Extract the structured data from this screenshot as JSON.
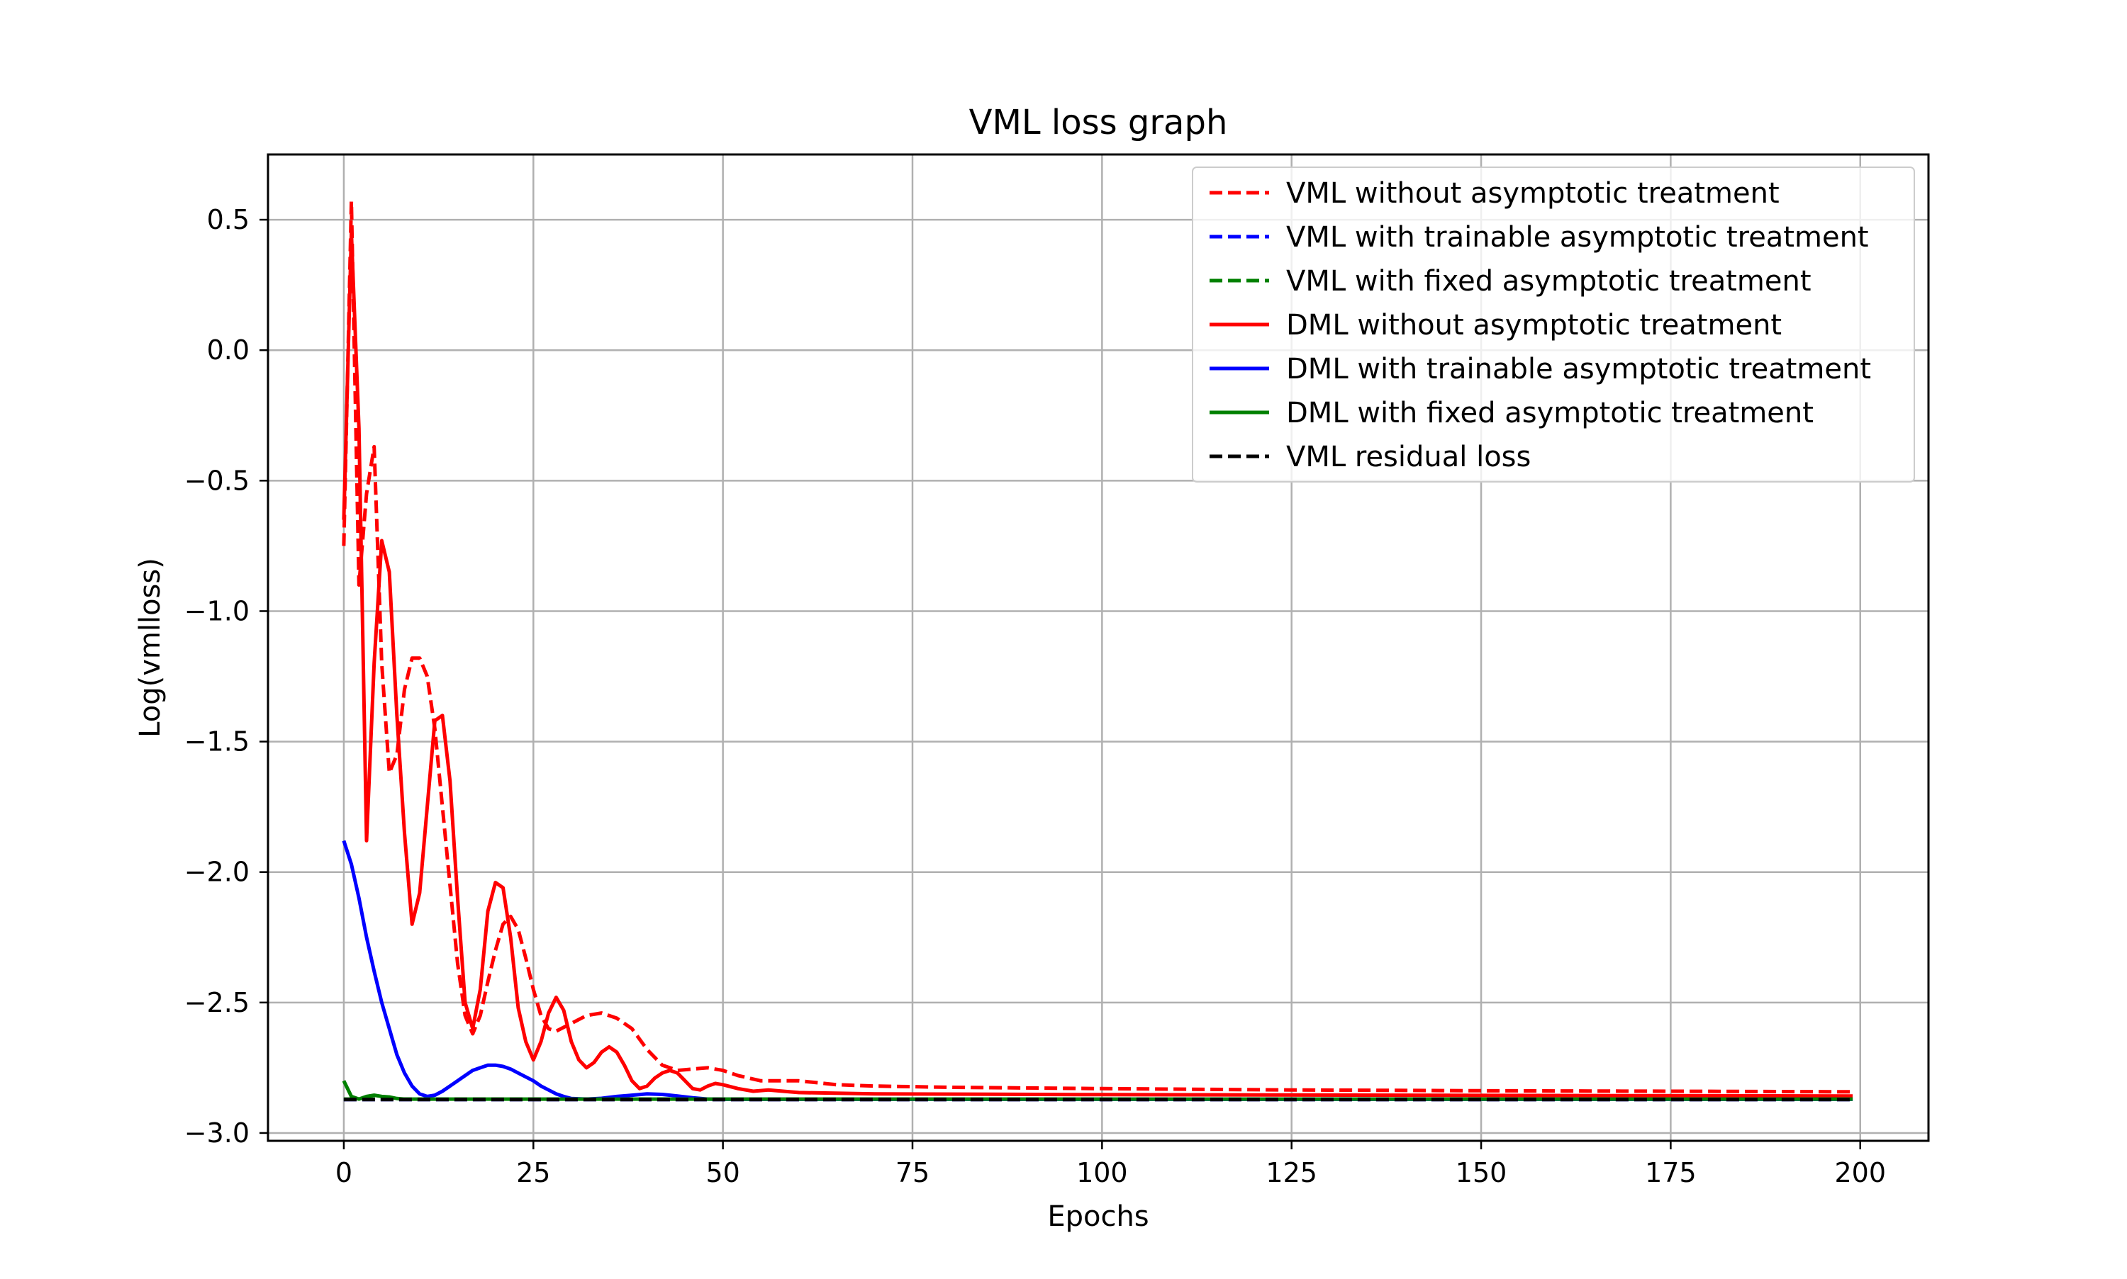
{
  "chart_data": {
    "type": "line",
    "title": "VML loss graph",
    "xlabel": "Epochs",
    "ylabel": "Log(vmlloss)",
    "xlim": [
      -10,
      209
    ],
    "ylim": [
      -3.03,
      0.75
    ],
    "xticks": [
      0,
      25,
      50,
      75,
      100,
      125,
      150,
      175,
      200
    ],
    "yticks": [
      0.5,
      0.0,
      -0.5,
      -1.0,
      -1.5,
      -2.0,
      -2.5,
      -3.0
    ],
    "xtick_labels": [
      "0",
      "25",
      "50",
      "75",
      "100",
      "125",
      "150",
      "175",
      "200"
    ],
    "ytick_labels": [
      "0.5",
      "0.0",
      "−0.5",
      "−1.0",
      "−1.5",
      "−2.0",
      "−2.5",
      "−3.0"
    ],
    "grid": true,
    "legend_position": "top-right",
    "series": [
      {
        "name": "VML without asymptotic treatment",
        "color": "#ff0000",
        "style": "dashed",
        "points": [
          [
            0,
            -0.75
          ],
          [
            1,
            0.57
          ],
          [
            2,
            -0.9
          ],
          [
            3,
            -0.55
          ],
          [
            4,
            -0.37
          ],
          [
            5,
            -1.2
          ],
          [
            6,
            -1.62
          ],
          [
            7,
            -1.55
          ],
          [
            8,
            -1.3
          ],
          [
            9,
            -1.18
          ],
          [
            10,
            -1.18
          ],
          [
            11,
            -1.25
          ],
          [
            12,
            -1.45
          ],
          [
            13,
            -1.75
          ],
          [
            14,
            -2.05
          ],
          [
            15,
            -2.35
          ],
          [
            16,
            -2.55
          ],
          [
            17,
            -2.62
          ],
          [
            18,
            -2.55
          ],
          [
            19,
            -2.42
          ],
          [
            20,
            -2.3
          ],
          [
            21,
            -2.2
          ],
          [
            22,
            -2.17
          ],
          [
            23,
            -2.22
          ],
          [
            24,
            -2.33
          ],
          [
            25,
            -2.45
          ],
          [
            26,
            -2.55
          ],
          [
            27,
            -2.6
          ],
          [
            28,
            -2.61
          ],
          [
            30,
            -2.58
          ],
          [
            32,
            -2.55
          ],
          [
            34,
            -2.54
          ],
          [
            36,
            -2.56
          ],
          [
            38,
            -2.6
          ],
          [
            40,
            -2.68
          ],
          [
            42,
            -2.74
          ],
          [
            44,
            -2.76
          ],
          [
            46,
            -2.755
          ],
          [
            48,
            -2.75
          ],
          [
            50,
            -2.76
          ],
          [
            52,
            -2.78
          ],
          [
            55,
            -2.8
          ],
          [
            60,
            -2.8
          ],
          [
            65,
            -2.815
          ],
          [
            70,
            -2.82
          ],
          [
            80,
            -2.825
          ],
          [
            100,
            -2.83
          ],
          [
            125,
            -2.835
          ],
          [
            150,
            -2.838
          ],
          [
            175,
            -2.84
          ],
          [
            199,
            -2.842
          ]
        ]
      },
      {
        "name": "VML with trainable asymptotic treatment",
        "color": "#0000ff",
        "style": "dashed",
        "points": [
          [
            0,
            -2.872
          ],
          [
            199,
            -2.872
          ]
        ]
      },
      {
        "name": "VML with fixed asymptotic treatment",
        "color": "#008000",
        "style": "dashed",
        "points": [
          [
            0,
            -2.87
          ],
          [
            199,
            -2.87
          ]
        ]
      },
      {
        "name": "DML without asymptotic treatment",
        "color": "#ff0000",
        "style": "solid",
        "points": [
          [
            0,
            -0.65
          ],
          [
            1,
            0.45
          ],
          [
            2,
            -0.3
          ],
          [
            3,
            -1.88
          ],
          [
            4,
            -1.2
          ],
          [
            5,
            -0.73
          ],
          [
            6,
            -0.85
          ],
          [
            7,
            -1.4
          ],
          [
            8,
            -1.85
          ],
          [
            9,
            -2.2
          ],
          [
            10,
            -2.08
          ],
          [
            11,
            -1.75
          ],
          [
            12,
            -1.42
          ],
          [
            13,
            -1.4
          ],
          [
            14,
            -1.65
          ],
          [
            15,
            -2.1
          ],
          [
            16,
            -2.5
          ],
          [
            17,
            -2.6
          ],
          [
            18,
            -2.45
          ],
          [
            19,
            -2.15
          ],
          [
            20,
            -2.04
          ],
          [
            21,
            -2.06
          ],
          [
            22,
            -2.25
          ],
          [
            23,
            -2.52
          ],
          [
            24,
            -2.65
          ],
          [
            25,
            -2.72
          ],
          [
            26,
            -2.65
          ],
          [
            27,
            -2.54
          ],
          [
            28,
            -2.48
          ],
          [
            29,
            -2.53
          ],
          [
            30,
            -2.65
          ],
          [
            31,
            -2.72
          ],
          [
            32,
            -2.75
          ],
          [
            33,
            -2.73
          ],
          [
            34,
            -2.69
          ],
          [
            35,
            -2.67
          ],
          [
            36,
            -2.69
          ],
          [
            37,
            -2.74
          ],
          [
            38,
            -2.8
          ],
          [
            39,
            -2.83
          ],
          [
            40,
            -2.82
          ],
          [
            41,
            -2.79
          ],
          [
            42,
            -2.77
          ],
          [
            43,
            -2.76
          ],
          [
            44,
            -2.77
          ],
          [
            45,
            -2.8
          ],
          [
            46,
            -2.83
          ],
          [
            47,
            -2.835
          ],
          [
            48,
            -2.82
          ],
          [
            49,
            -2.81
          ],
          [
            50,
            -2.815
          ],
          [
            52,
            -2.83
          ],
          [
            54,
            -2.84
          ],
          [
            56,
            -2.835
          ],
          [
            60,
            -2.845
          ],
          [
            70,
            -2.85
          ],
          [
            100,
            -2.853
          ],
          [
            150,
            -2.856
          ],
          [
            199,
            -2.858
          ]
        ]
      },
      {
        "name": "DML with trainable asymptotic treatment",
        "color": "#0000ff",
        "style": "solid",
        "points": [
          [
            0,
            -1.88
          ],
          [
            1,
            -1.97
          ],
          [
            2,
            -2.1
          ],
          [
            3,
            -2.25
          ],
          [
            4,
            -2.38
          ],
          [
            5,
            -2.5
          ],
          [
            6,
            -2.6
          ],
          [
            7,
            -2.7
          ],
          [
            8,
            -2.77
          ],
          [
            9,
            -2.82
          ],
          [
            10,
            -2.85
          ],
          [
            11,
            -2.86
          ],
          [
            12,
            -2.855
          ],
          [
            13,
            -2.84
          ],
          [
            14,
            -2.82
          ],
          [
            15,
            -2.8
          ],
          [
            16,
            -2.78
          ],
          [
            17,
            -2.76
          ],
          [
            18,
            -2.75
          ],
          [
            19,
            -2.74
          ],
          [
            20,
            -2.74
          ],
          [
            21,
            -2.745
          ],
          [
            22,
            -2.755
          ],
          [
            23,
            -2.77
          ],
          [
            24,
            -2.785
          ],
          [
            25,
            -2.8
          ],
          [
            26,
            -2.82
          ],
          [
            27,
            -2.835
          ],
          [
            28,
            -2.85
          ],
          [
            29,
            -2.86
          ],
          [
            30,
            -2.868
          ],
          [
            32,
            -2.87
          ],
          [
            34,
            -2.867
          ],
          [
            36,
            -2.86
          ],
          [
            38,
            -2.855
          ],
          [
            40,
            -2.85
          ],
          [
            42,
            -2.852
          ],
          [
            44,
            -2.858
          ],
          [
            46,
            -2.865
          ],
          [
            48,
            -2.87
          ],
          [
            50,
            -2.871
          ],
          [
            199,
            -2.871
          ]
        ]
      },
      {
        "name": "DML with fixed asymptotic treatment",
        "color": "#008000",
        "style": "solid",
        "points": [
          [
            0,
            -2.8
          ],
          [
            1,
            -2.86
          ],
          [
            2,
            -2.87
          ],
          [
            3,
            -2.86
          ],
          [
            4,
            -2.855
          ],
          [
            5,
            -2.86
          ],
          [
            6,
            -2.862
          ],
          [
            7,
            -2.868
          ],
          [
            8,
            -2.87
          ],
          [
            199,
            -2.87
          ]
        ]
      },
      {
        "name": "VML residual loss",
        "color": "#000000",
        "style": "dashed",
        "points": [
          [
            0,
            -2.872
          ],
          [
            199,
            -2.872
          ]
        ]
      }
    ]
  }
}
